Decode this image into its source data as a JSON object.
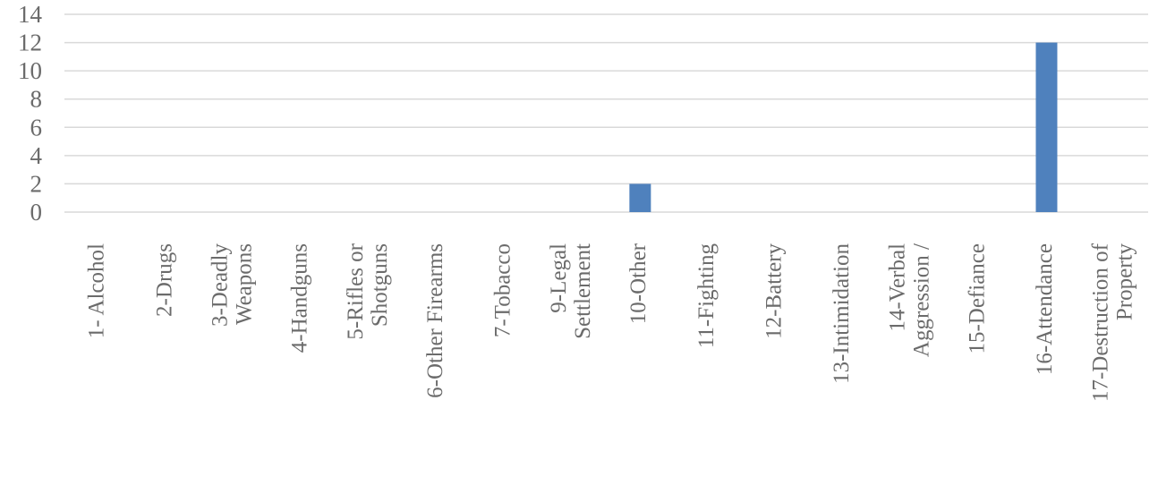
{
  "chart_data": {
    "type": "bar",
    "title": "",
    "xlabel": "",
    "ylabel": "",
    "ylim": [
      0,
      14
    ],
    "yticks": [
      0,
      2,
      4,
      6,
      8,
      10,
      12,
      14
    ],
    "grid": true,
    "legend": "none",
    "bar_color": "#4F81BD",
    "categories": [
      "1- Alcohol",
      "2-Drugs",
      "3-Deadly Weapons",
      "4-Handguns",
      "5-Rifles or Shotguns",
      "6-Other Firearms",
      "7-Tobacco",
      "9-Legal Settlement",
      "10-Other",
      "11-Fighting",
      "12-Battery",
      "13-Intimidation",
      "14-Verbal Aggression /",
      "15-Defiance",
      "16-Attendance",
      "17-Destruction of Property"
    ],
    "category_lines": [
      [
        "1- Alcohol"
      ],
      [
        "2-Drugs"
      ],
      [
        "3-Deadly",
        "Weapons"
      ],
      [
        "4-Handguns"
      ],
      [
        "5-Rifles or",
        "Shotguns"
      ],
      [
        "6-Other Firearms"
      ],
      [
        "7-Tobacco"
      ],
      [
        "9-Legal",
        "Settlement"
      ],
      [
        "10-Other"
      ],
      [
        "11-Fighting"
      ],
      [
        "12-Battery"
      ],
      [
        "13-Intimidation"
      ],
      [
        "14-Verbal",
        "Aggression /"
      ],
      [
        "15-Defiance"
      ],
      [
        "16-Attendance"
      ],
      [
        "17-Destruction of",
        "Property"
      ]
    ],
    "values": [
      0,
      0,
      0,
      0,
      0,
      0,
      0,
      0,
      2,
      0,
      0,
      0,
      0,
      0,
      12,
      0
    ]
  }
}
